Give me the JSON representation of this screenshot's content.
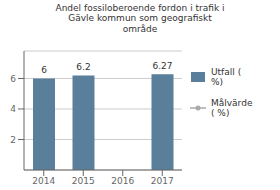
{
  "chart_data": {
    "type": "bar",
    "title": "Andel fossiloberoende fordon i trafik i\nGävle kommun som geografiskt\nområde",
    "categories": [
      "2014",
      "2015",
      "2016",
      "2017"
    ],
    "series": [
      {
        "name": "Utfall (\n%)",
        "type": "bar",
        "color": "#5a7f9a",
        "values": [
          6,
          6.2,
          null,
          6.27
        ]
      },
      {
        "name": "Målvärde\n( %)",
        "type": "line",
        "marker": "circle",
        "color": "#aaaaaa",
        "values": [
          null,
          null,
          null,
          null
        ]
      }
    ],
    "ylim": [
      0,
      7.8
    ],
    "yticks": [
      2,
      4,
      6
    ],
    "grid": true,
    "legend": "right",
    "data_labels": true
  }
}
